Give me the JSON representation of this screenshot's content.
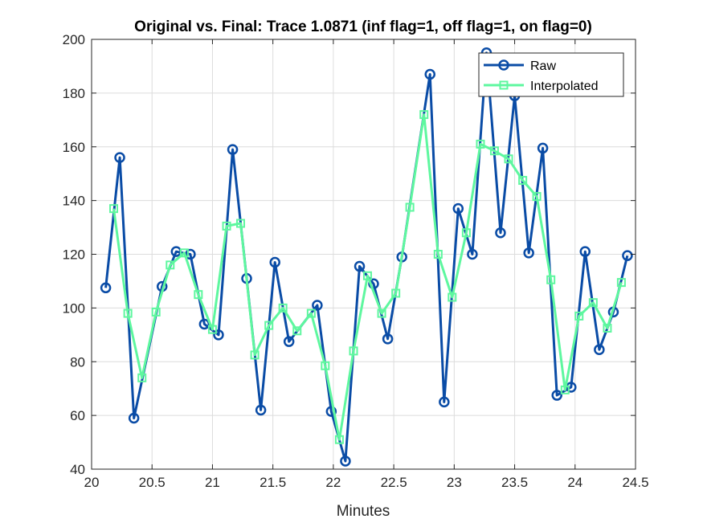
{
  "chart_data": {
    "type": "line",
    "title": "Original vs. Final: Trace 1.0871 (inf flag=1, off flag=1, on flag=0)",
    "xlabel": "Minutes",
    "ylabel": "",
    "xlim": [
      20,
      24.5
    ],
    "ylim": [
      40,
      200
    ],
    "xticks": [
      20,
      20.5,
      21,
      21.5,
      22,
      22.5,
      23,
      23.5,
      24,
      24.5
    ],
    "xtick_labels": [
      "20",
      "20.5",
      "21",
      "21.5",
      "22",
      "22.5",
      "23",
      "23.5",
      "24",
      "24.5"
    ],
    "yticks": [
      40,
      60,
      80,
      100,
      120,
      140,
      160,
      180,
      200
    ],
    "ytick_labels": [
      "40",
      "60",
      "80",
      "100",
      "120",
      "140",
      "160",
      "180",
      "200"
    ],
    "grid": true,
    "legend_position": "top-right",
    "series": [
      {
        "name": "Raw",
        "color": "#0a4ca6",
        "marker": "circle",
        "x": [
          20.117,
          20.233,
          20.35,
          20.583,
          20.7,
          20.817,
          20.933,
          21.05,
          21.167,
          21.283,
          21.4,
          21.517,
          21.633,
          21.867,
          21.983,
          22.1,
          22.217,
          22.333,
          22.45,
          22.567,
          22.8,
          22.917,
          23.033,
          23.15,
          23.267,
          23.383,
          23.5,
          23.617,
          23.733,
          23.85,
          23.967,
          24.083,
          24.2,
          24.317,
          24.433
        ],
        "y": [
          107.5,
          156,
          59,
          108,
          121,
          120,
          94,
          90,
          159,
          111,
          62,
          117,
          87.5,
          101,
          61.5,
          43,
          115.5,
          109,
          88.5,
          119,
          187,
          65,
          137,
          120,
          195,
          128,
          179,
          120.5,
          159.5,
          67.5,
          70.5,
          121,
          84.5,
          98.5,
          119.5
        ]
      },
      {
        "name": "Interpolated",
        "color": "#5ef79f",
        "marker": "square",
        "x": [
          20.183,
          20.3,
          20.417,
          20.533,
          20.65,
          20.767,
          20.883,
          21.0,
          21.117,
          21.233,
          21.35,
          21.467,
          21.583,
          21.7,
          21.817,
          21.933,
          22.05,
          22.167,
          22.283,
          22.4,
          22.517,
          22.633,
          22.75,
          22.867,
          22.983,
          23.1,
          23.217,
          23.333,
          23.45,
          23.567,
          23.683,
          23.8,
          23.917,
          24.033,
          24.15,
          24.267,
          24.383
        ],
        "y": [
          137,
          98,
          74,
          98.5,
          116,
          120.5,
          105,
          92,
          130.5,
          131.5,
          82.5,
          93.5,
          100,
          91.5,
          98,
          78.5,
          51,
          84,
          112,
          98,
          105.5,
          137.5,
          172,
          120,
          104,
          128,
          161,
          158.5,
          155.5,
          147.5,
          141.5,
          110.5,
          69.5,
          97,
          102,
          92.5,
          109.5
        ]
      }
    ]
  }
}
